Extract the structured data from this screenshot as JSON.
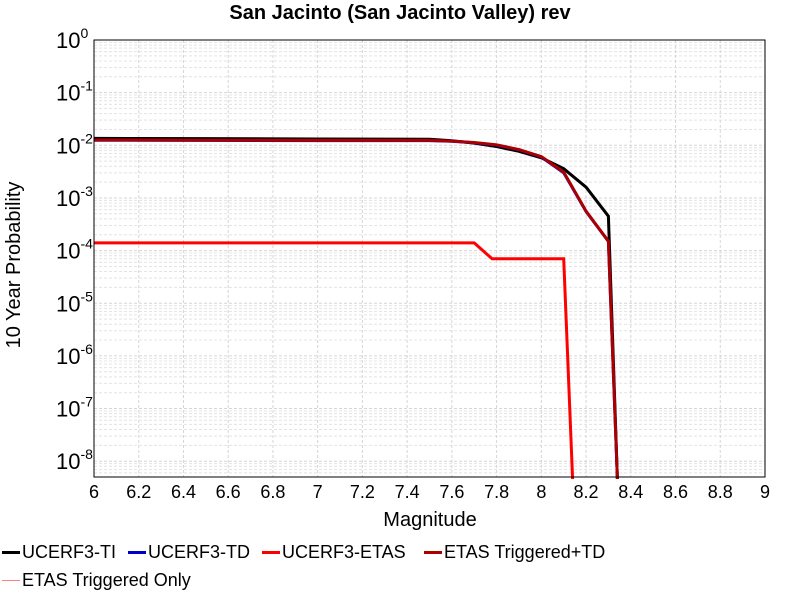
{
  "chart_data": {
    "type": "line",
    "title": "San Jacinto (San Jacinto Valley) rev",
    "xlabel": "Magnitude",
    "ylabel": "10 Year Probability",
    "xlim": [
      6,
      9
    ],
    "ylim_exponents": [
      -8.3,
      0
    ],
    "y_scale": "log",
    "x_ticks": [
      "6",
      "6.2",
      "6.4",
      "6.6",
      "6.8",
      "7",
      "7.2",
      "7.4",
      "7.6",
      "7.8",
      "8",
      "8.2",
      "8.4",
      "8.6",
      "8.8",
      "9"
    ],
    "y_tick_exponents": [
      "0",
      "-1",
      "-2",
      "-3",
      "-4",
      "-5",
      "-6",
      "-7",
      "-8"
    ],
    "y_tick_base": "10",
    "grid": true,
    "legend_position": "bottom",
    "series": [
      {
        "name": "UCERF3-TI",
        "color": "#000000",
        "x": [
          6.0,
          6.5,
          7.0,
          7.5,
          7.6,
          7.7,
          7.8,
          7.9,
          8.0,
          8.1,
          8.2,
          8.3,
          8.34
        ],
        "y": [
          0.0135,
          0.0134,
          0.0132,
          0.013,
          0.0122,
          0.011,
          0.0095,
          0.0077,
          0.0058,
          0.0036,
          0.0016,
          0.00045,
          1e-09
        ]
      },
      {
        "name": "UCERF3-TD",
        "color": "#0000cc",
        "x": [
          6.0,
          6.5,
          7.0,
          7.5,
          7.6,
          7.7,
          7.8,
          7.9,
          8.0,
          8.1,
          8.2,
          8.3,
          8.34
        ],
        "y": [
          0.0125,
          0.0124,
          0.0123,
          0.0123,
          0.0119,
          0.0112,
          0.0101,
          0.0082,
          0.006,
          0.003,
          0.00055,
          0.00015,
          1e-09
        ]
      },
      {
        "name": "UCERF3-ETAS",
        "color": "#ff0000",
        "x": [
          6.0,
          7.7,
          7.78,
          8.1,
          8.14
        ],
        "y": [
          0.00014,
          0.00014,
          7e-05,
          7e-05,
          1e-09
        ]
      },
      {
        "name": "ETAS Triggered+TD",
        "color": "#aa0000",
        "x": [
          6.0,
          6.5,
          7.0,
          7.5,
          7.6,
          7.7,
          7.8,
          7.9,
          8.0,
          8.1,
          8.2,
          8.3,
          8.34
        ],
        "y": [
          0.0126,
          0.0125,
          0.0124,
          0.0124,
          0.012,
          0.0113,
          0.0102,
          0.0083,
          0.0061,
          0.0031,
          0.00056,
          0.00015,
          1e-09
        ]
      },
      {
        "name": "ETAS Triggered Only",
        "color": "#ff8080",
        "x": [],
        "y": []
      }
    ]
  }
}
